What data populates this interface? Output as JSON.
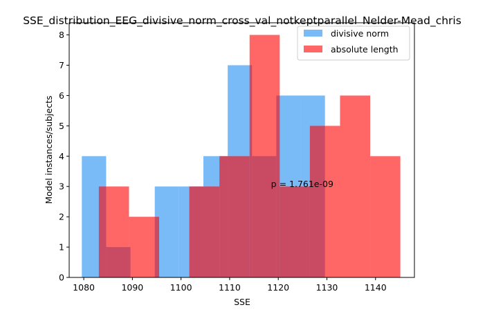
{
  "chart_data": {
    "type": "histogram",
    "title": "SSE_distribution_EEG_divisive_norm_cross_val_notkeptparallel_Nelder-Mead_chris",
    "xlabel": "SSE",
    "ylabel": "Model instances/subjects",
    "xlim": [
      1077,
      1148
    ],
    "ylim": [
      0,
      8.4
    ],
    "xticks": [
      1080,
      1090,
      1100,
      1110,
      1120,
      1130,
      1140
    ],
    "yticks": [
      0,
      1,
      2,
      3,
      4,
      5,
      6,
      7,
      8
    ],
    "grid": false,
    "legend_position": "top-right",
    "series": [
      {
        "name": "divisive norm",
        "color": "#1f8ef1",
        "opacity": 0.6,
        "bins": [
          {
            "x0": 1079.6,
            "x1": 1084.6,
            "count": 4
          },
          {
            "x0": 1084.6,
            "x1": 1089.6,
            "count": 1
          },
          {
            "x0": 1089.6,
            "x1": 1094.6,
            "count": 0
          },
          {
            "x0": 1094.6,
            "x1": 1099.6,
            "count": 3
          },
          {
            "x0": 1099.6,
            "x1": 1104.6,
            "count": 3
          },
          {
            "x0": 1104.6,
            "x1": 1109.6,
            "count": 4
          },
          {
            "x0": 1109.6,
            "x1": 1114.6,
            "count": 7
          },
          {
            "x0": 1114.6,
            "x1": 1119.6,
            "count": 4
          },
          {
            "x0": 1119.6,
            "x1": 1124.6,
            "count": 6
          },
          {
            "x0": 1124.6,
            "x1": 1129.6,
            "count": 6
          }
        ]
      },
      {
        "name": "absolute length",
        "color": "#ff0000",
        "opacity": 0.6,
        "bins": [
          {
            "x0": 1083.1,
            "x1": 1089.3,
            "count": 3
          },
          {
            "x0": 1089.3,
            "x1": 1095.5,
            "count": 2
          },
          {
            "x0": 1095.5,
            "x1": 1101.7,
            "count": 0
          },
          {
            "x0": 1101.7,
            "x1": 1107.9,
            "count": 3
          },
          {
            "x0": 1107.9,
            "x1": 1114.1,
            "count": 4
          },
          {
            "x0": 1114.1,
            "x1": 1120.3,
            "count": 8
          },
          {
            "x0": 1120.3,
            "x1": 1126.5,
            "count": 3
          },
          {
            "x0": 1126.5,
            "x1": 1132.7,
            "count": 5
          },
          {
            "x0": 1132.7,
            "x1": 1138.9,
            "count": 6
          },
          {
            "x0": 1138.9,
            "x1": 1145.1,
            "count": 4
          }
        ]
      }
    ],
    "annotation": {
      "text": "p = 1.761e-09",
      "x": 1118.5,
      "y": 3.0
    }
  }
}
